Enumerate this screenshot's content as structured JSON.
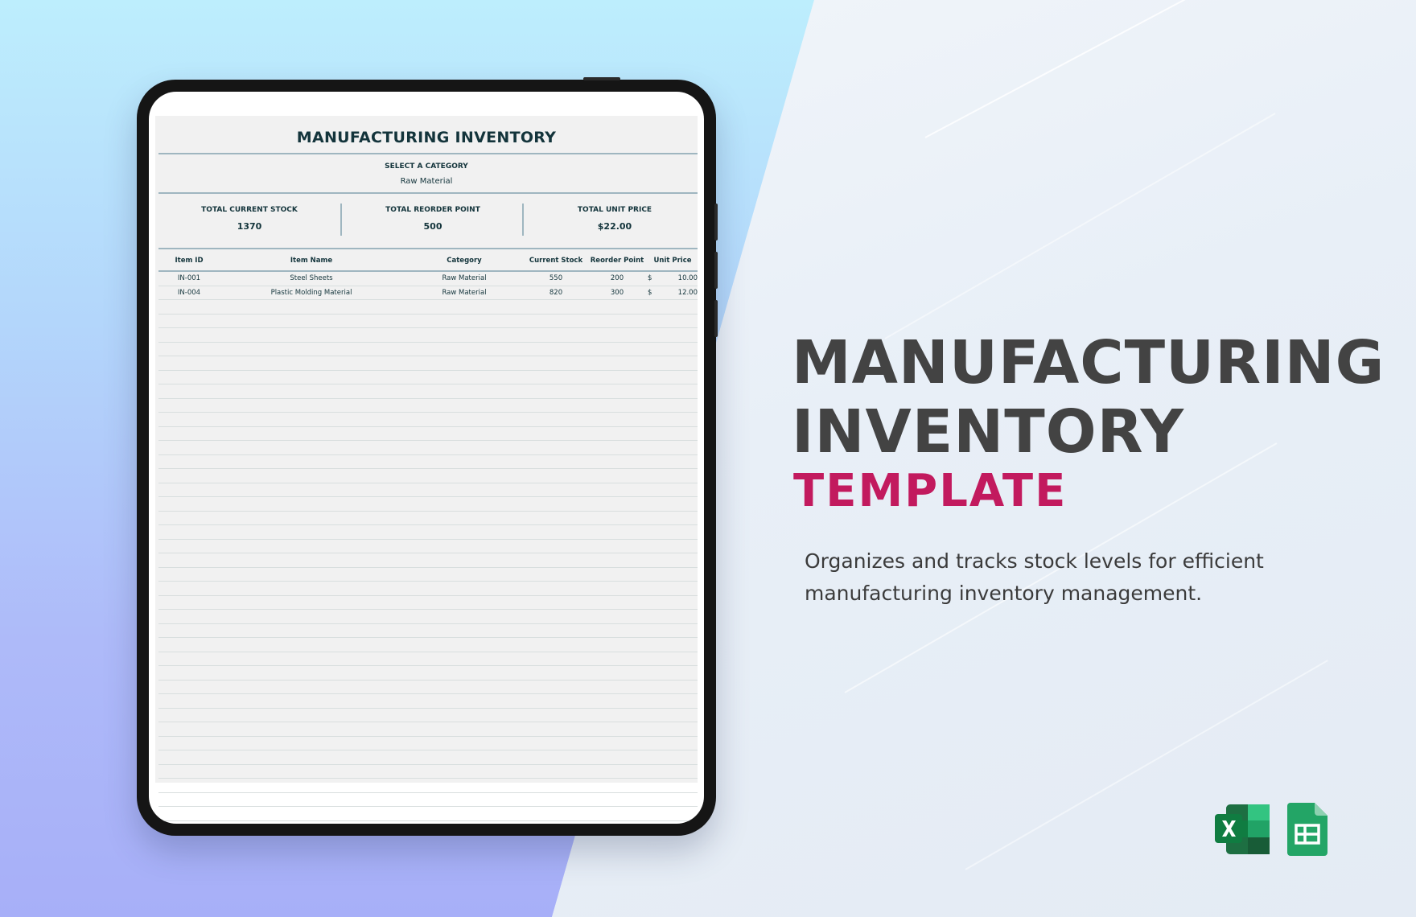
{
  "hero": {
    "title_line1": "MANUFACTURING",
    "title_line2": "INVENTORY",
    "subtitle": "TEMPLATE",
    "description": "Organizes and tracks stock levels for efficient manufacturing inventory management."
  },
  "sheet": {
    "title": "MANUFACTURING INVENTORY",
    "category_label": "SELECT A CATEGORY",
    "category_value": "Raw Material",
    "stats": {
      "current_stock_label": "TOTAL CURRENT STOCK",
      "current_stock_value": "1370",
      "reorder_point_label": "TOTAL REORDER POINT",
      "reorder_point_value": "500",
      "unit_price_label": "TOTAL UNIT PRICE",
      "unit_price_value": "$22.00"
    },
    "columns": [
      "Item ID",
      "Item Name",
      "Category",
      "Current Stock",
      "Reorder Point",
      "Unit Price"
    ],
    "rows": [
      {
        "id": "IN-001",
        "name": "Steel Sheets",
        "category": "Raw Material",
        "stock": "550",
        "reorder": "200",
        "currency": "$",
        "price": "10.00"
      },
      {
        "id": "IN-004",
        "name": "Plastic Molding Material",
        "category": "Raw Material",
        "stock": "820",
        "reorder": "300",
        "currency": "$",
        "price": "12.00"
      }
    ]
  },
  "app_icons": [
    "excel-icon",
    "google-sheets-icon"
  ],
  "colors": {
    "title_dark": "#434343",
    "accent_pink": "#c21a5e",
    "sheet_text": "#13343b",
    "excel_green": "#1d6f42",
    "sheets_green": "#23a566"
  }
}
